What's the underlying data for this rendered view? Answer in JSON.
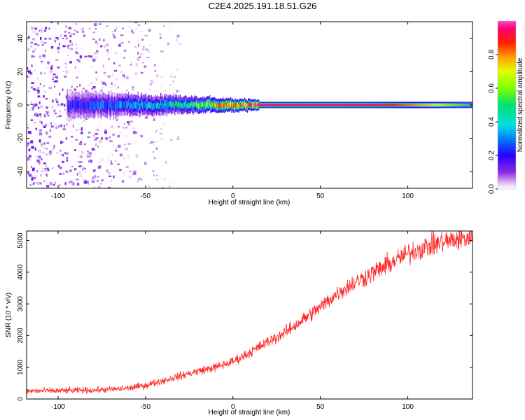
{
  "figure": {
    "title": "C2E4.2025.191.18.51.G26"
  },
  "chart_data": [
    {
      "type": "heatmap",
      "title": "C2E4.2025.191.18.51.G26",
      "xlabel": "Height of straight line (km)",
      "ylabel": "Frequency (Hz)",
      "xlim": [
        -118,
        137
      ],
      "ylim": [
        -50,
        50
      ],
      "xticks": [
        -100,
        -50,
        0,
        50,
        100
      ],
      "yticks": [
        -40,
        -20,
        0,
        20,
        40
      ],
      "colorbar": {
        "label": "Normalized spectral amplitude",
        "range": [
          0,
          1
        ],
        "ticks": [
          0,
          0.2,
          0.4,
          0.6,
          0.8
        ],
        "colormap": "rainbow (purple-blue-cyan-green-yellow-red-magenta)"
      },
      "features": [
        {
          "description": "noise",
          "x_range": [
            -118,
            -30
          ],
          "freq_range": [
            -50,
            50
          ],
          "amplitude_max": 0.15
        },
        {
          "description": "signal trace",
          "x_range": [
            -95,
            137
          ],
          "freq_center": 0,
          "amplitude_profile": [
            {
              "x": -95,
              "amplitude": 0.2
            },
            {
              "x": -60,
              "amplitude": 0.3
            },
            {
              "x": -30,
              "amplitude": 0.45
            },
            {
              "x": -10,
              "amplitude": 0.7
            },
            {
              "x": 0,
              "amplitude": 0.85
            },
            {
              "x": 15,
              "amplitude": 0.95
            },
            {
              "x": 80,
              "amplitude": 0.95
            },
            {
              "x": 110,
              "amplitude": 0.75
            },
            {
              "x": 137,
              "amplitude": 0.5
            }
          ]
        }
      ]
    },
    {
      "type": "line",
      "xlabel": "Height of straight line (km)",
      "ylabel": "SNR (10 * v/v)",
      "xlim": [
        -118,
        137
      ],
      "ylim": [
        0,
        5300
      ],
      "xticks": [
        -100,
        -50,
        0,
        50,
        100
      ],
      "yticks": [
        0,
        1000,
        2000,
        3000,
        4000,
        5000
      ],
      "color": "#ff2a2a",
      "series": [
        {
          "x": [
            -118,
            -100,
            -90,
            -80,
            -70,
            -60,
            -50,
            -40,
            -30,
            -20,
            -10,
            0,
            10,
            20,
            30,
            40,
            50,
            60,
            70,
            80,
            90,
            100,
            110,
            120,
            130,
            137
          ],
          "values": [
            250,
            260,
            270,
            280,
            300,
            340,
            430,
            580,
            730,
            880,
            1000,
            1180,
            1480,
            1800,
            2100,
            2500,
            2900,
            3350,
            3680,
            3980,
            4280,
            4580,
            4800,
            4950,
            5050,
            5100
          ]
        }
      ]
    }
  ]
}
